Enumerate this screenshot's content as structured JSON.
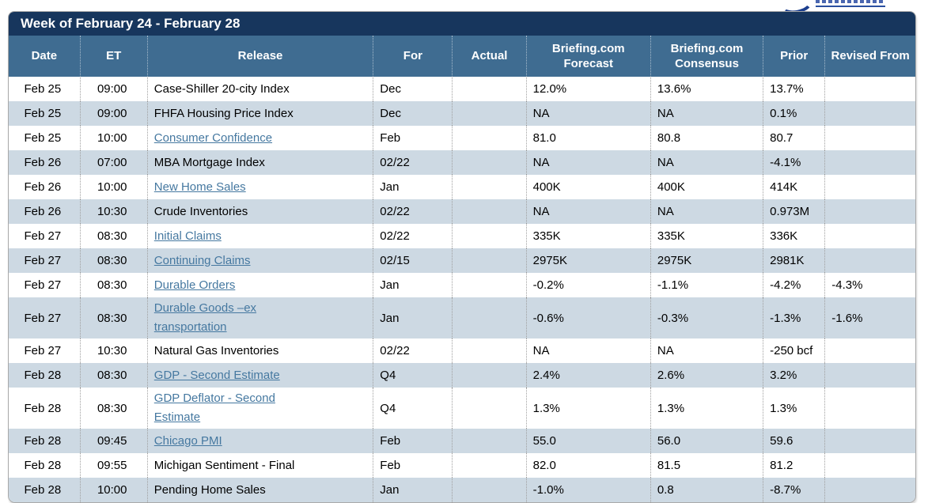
{
  "logo": {
    "name": "Briefing.com partial logo (cut off at top edge)"
  },
  "colors": {
    "title_bar": "#17365d",
    "header_row": "#3f6c91",
    "alt_row": "#cdd9e3",
    "link": "#4578a0",
    "border": "#a9a9a9"
  },
  "calendar": {
    "title": "Week of February 24 - February 28",
    "columns": [
      "Date",
      "ET",
      "Release",
      "For",
      "Actual",
      "Briefing.com Forecast",
      "Briefing.com Consensus",
      "Prior",
      "Revised From"
    ],
    "rows": [
      {
        "date": "Feb 25",
        "et": "09:00",
        "release": "Case-Shiller 20-city Index",
        "link": false,
        "for_period": "Dec",
        "actual": "",
        "forecast": "12.0%",
        "consensus": "13.6%",
        "prior": "13.7%",
        "revised_from": ""
      },
      {
        "date": "Feb 25",
        "et": "09:00",
        "release": "FHFA Housing Price Index",
        "link": false,
        "for_period": "Dec",
        "actual": "",
        "forecast": "NA",
        "consensus": "NA",
        "prior": "0.1%",
        "revised_from": ""
      },
      {
        "date": "Feb 25",
        "et": "10:00",
        "release": "Consumer Confidence",
        "link": true,
        "for_period": "Feb",
        "actual": "",
        "forecast": "81.0",
        "consensus": "80.8",
        "prior": "80.7",
        "revised_from": ""
      },
      {
        "date": "Feb 26",
        "et": "07:00",
        "release": "MBA Mortgage Index",
        "link": false,
        "for_period": "02/22",
        "actual": "",
        "forecast": "NA",
        "consensus": "NA",
        "prior": "-4.1%",
        "revised_from": ""
      },
      {
        "date": "Feb 26",
        "et": "10:00",
        "release": "New Home Sales",
        "link": true,
        "for_period": "Jan",
        "actual": "",
        "forecast": "400K",
        "consensus": "400K",
        "prior": "414K",
        "revised_from": ""
      },
      {
        "date": "Feb 26",
        "et": "10:30",
        "release": "Crude Inventories",
        "link": false,
        "for_period": "02/22",
        "actual": "",
        "forecast": "NA",
        "consensus": "NA",
        "prior": "0.973M",
        "revised_from": ""
      },
      {
        "date": "Feb 27",
        "et": "08:30",
        "release": "Initial Claims",
        "link": true,
        "for_period": "02/22",
        "actual": "",
        "forecast": "335K",
        "consensus": "335K",
        "prior": "336K",
        "revised_from": ""
      },
      {
        "date": "Feb 27",
        "et": "08:30",
        "release": "Continuing Claims",
        "link": true,
        "for_period": "02/15",
        "actual": "",
        "forecast": "2975K",
        "consensus": "2975K",
        "prior": "2981K",
        "revised_from": ""
      },
      {
        "date": "Feb 27",
        "et": "08:30",
        "release": "Durable Orders",
        "link": true,
        "for_period": "Jan",
        "actual": "",
        "forecast": "-0.2%",
        "consensus": "-1.1%",
        "prior": "-4.2%",
        "revised_from": "-4.3%"
      },
      {
        "date": "Feb 27",
        "et": "08:30",
        "release": "Durable Goods –ex\ntransportation",
        "link": true,
        "for_period": "Jan",
        "actual": "",
        "forecast": "-0.6%",
        "consensus": "-0.3%",
        "prior": "-1.3%",
        "revised_from": "-1.6%"
      },
      {
        "date": "Feb 27",
        "et": "10:30",
        "release": "Natural Gas Inventories",
        "link": false,
        "for_period": "02/22",
        "actual": "",
        "forecast": "NA",
        "consensus": "NA",
        "prior": "-250 bcf",
        "revised_from": ""
      },
      {
        "date": "Feb 28",
        "et": "08:30",
        "release": "GDP - Second Estimate",
        "link": true,
        "for_period": "Q4",
        "actual": "",
        "forecast": "2.4%",
        "consensus": "2.6%",
        "prior": "3.2%",
        "revised_from": ""
      },
      {
        "date": "Feb 28",
        "et": "08:30",
        "release": "GDP Deflator - Second\nEstimate",
        "link": true,
        "for_period": "Q4",
        "actual": "",
        "forecast": "1.3%",
        "consensus": "1.3%",
        "prior": "1.3%",
        "revised_from": ""
      },
      {
        "date": "Feb 28",
        "et": "09:45",
        "release": "Chicago PMI",
        "link": true,
        "for_period": "Feb",
        "actual": "",
        "forecast": "55.0",
        "consensus": "56.0",
        "prior": "59.6",
        "revised_from": ""
      },
      {
        "date": "Feb 28",
        "et": "09:55",
        "release": "Michigan Sentiment - Final",
        "link": false,
        "for_period": "Feb",
        "actual": "",
        "forecast": "82.0",
        "consensus": "81.5",
        "prior": "81.2",
        "revised_from": ""
      },
      {
        "date": "Feb 28",
        "et": "10:00",
        "release": "Pending Home Sales",
        "link": false,
        "for_period": "Jan",
        "actual": "",
        "forecast": "-1.0%",
        "consensus": "0.8",
        "prior": "-8.7%",
        "revised_from": ""
      }
    ]
  }
}
